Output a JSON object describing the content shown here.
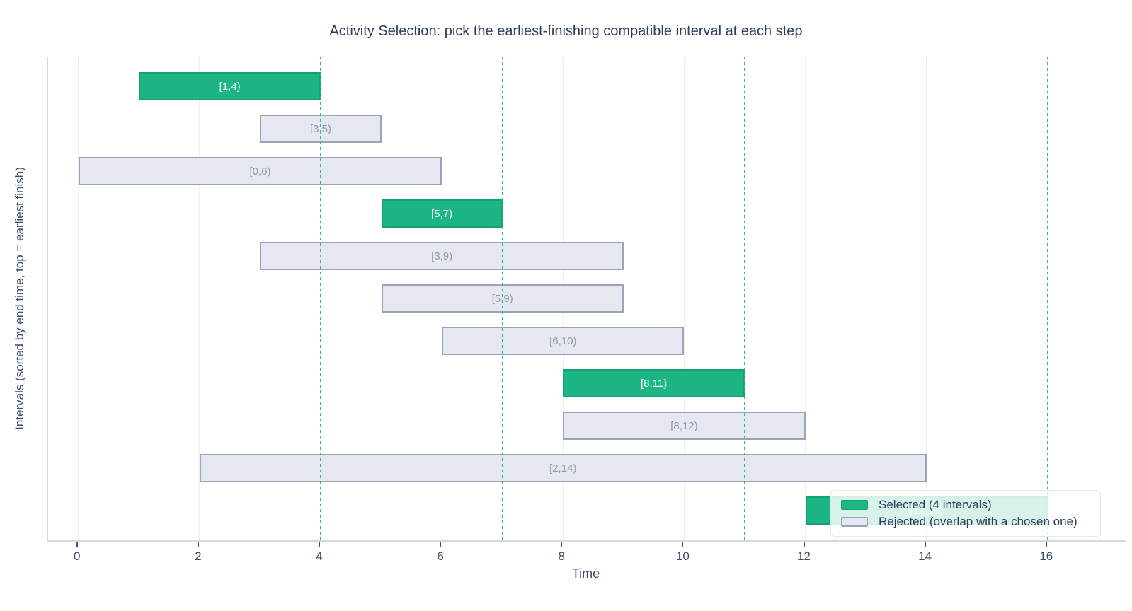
{
  "title": "Activity Selection: pick the earliest-finishing compatible interval at each step",
  "axes": {
    "x_label": "Time",
    "y_label": "Intervals (sorted by end time, top = earliest finish)"
  },
  "legend": {
    "position": "lower right",
    "items": [
      {
        "label": "Selected (4 intervals)",
        "type": "selected"
      },
      {
        "label": "Rejected (overlap with a chosen one)",
        "type": "rejected"
      }
    ]
  },
  "colors": {
    "selected": "#1db583",
    "selected_border": "#17a173",
    "rejected_fill": "#e5e8f0",
    "rejected_border": "#9ba4b6",
    "rejected_text": "#8f98ab",
    "finish_line": "#2abd8c",
    "gridline": "#edeff4",
    "axis_line": "#d3d8e1",
    "tick": "#42526e",
    "text_dark": "#2c3e5d",
    "text_axis": "#3c4b68",
    "legend_border": "#e3e7ef"
  },
  "chart_data": {
    "type": "bar",
    "subtype": "horizontal-interval-gantt",
    "title": "Activity Selection: pick the earliest-finishing compatible interval at each step",
    "xlabel": "Time",
    "ylabel": "Intervals (sorted by end time, top = earliest finish)",
    "xlim": [
      -0.5,
      17.3
    ],
    "x_ticks": [
      0,
      2,
      4,
      6,
      8,
      10,
      12,
      14,
      16
    ],
    "grid": "vertical-at-ticks",
    "legend_position": "lower right",
    "selected_count": 4,
    "selected_finish_lines": [
      4,
      7,
      11,
      16
    ],
    "intervals": [
      {
        "label": "[1,4)",
        "start": 1,
        "end": 4,
        "status": "selected"
      },
      {
        "label": "[3,5)",
        "start": 3,
        "end": 5,
        "status": "rejected"
      },
      {
        "label": "[0,6)",
        "start": 0,
        "end": 6,
        "status": "rejected"
      },
      {
        "label": "[5,7)",
        "start": 5,
        "end": 7,
        "status": "selected"
      },
      {
        "label": "[3,9)",
        "start": 3,
        "end": 9,
        "status": "rejected"
      },
      {
        "label": "[5,9)",
        "start": 5,
        "end": 9,
        "status": "rejected"
      },
      {
        "label": "[6,10)",
        "start": 6,
        "end": 10,
        "status": "rejected"
      },
      {
        "label": "[8,11)",
        "start": 8,
        "end": 11,
        "status": "selected"
      },
      {
        "label": "[8,12)",
        "start": 8,
        "end": 12,
        "status": "rejected"
      },
      {
        "label": "[2,14)",
        "start": 2,
        "end": 14,
        "status": "rejected"
      },
      {
        "label": "[12,16)",
        "start": 12,
        "end": 16,
        "status": "selected"
      }
    ]
  }
}
